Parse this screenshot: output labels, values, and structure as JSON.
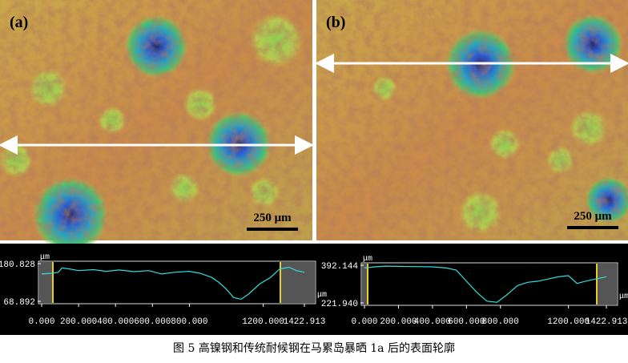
{
  "panels": [
    {
      "label": "(a)",
      "scale": "250 μm"
    },
    {
      "label": "(b)",
      "scale": "250 μm"
    }
  ],
  "chart_data": [
    {
      "type": "line",
      "ylabel": "μm",
      "xlabel": "μm",
      "color": "#33dddd",
      "ylim": [
        68.892,
        180.828
      ],
      "yticks": [
        68.892,
        180.828
      ],
      "xlim": [
        0,
        1422.913
      ],
      "xticks": [
        {
          "value": 0,
          "label": "0.000"
        },
        {
          "value": 200,
          "label": "200.000"
        },
        {
          "value": 400,
          "label": "400.000"
        },
        {
          "value": 600,
          "label": "600.000"
        },
        {
          "value": 800,
          "label": "800.000"
        },
        {
          "value": 1200,
          "label": "1200.000"
        },
        {
          "value": 1422.913,
          "label": "1422.913"
        }
      ],
      "x": [
        0,
        50,
        90,
        110,
        150,
        200,
        280,
        350,
        420,
        500,
        580,
        650,
        720,
        800,
        860,
        920,
        960,
        1000,
        1040,
        1080,
        1120,
        1180,
        1240,
        1290,
        1340,
        1380,
        1422.913
      ],
      "values": [
        150,
        152,
        155,
        168,
        165,
        160,
        163,
        158,
        162,
        157,
        160,
        150,
        155,
        158,
        152,
        140,
        125,
        105,
        80,
        75,
        90,
        120,
        140,
        165,
        170,
        160,
        155
      ]
    },
    {
      "type": "line",
      "ylabel": "μm",
      "xlabel": "μm",
      "color": "#33dddd",
      "ylim": [
        {
          "value": 221.94,
          "label": "221.940"
        },
        392.144
      ],
      "yticks": [
        {
          "value": 221.94,
          "label": "221.940"
        },
        392.144
      ],
      "xlim": [
        0,
        1422.913
      ],
      "xticks": [
        {
          "value": 0,
          "label": "0.000"
        },
        {
          "value": 200,
          "label": "200.000"
        },
        {
          "value": 400,
          "label": "400.000"
        },
        {
          "value": 600,
          "label": "600.000"
        },
        {
          "value": 800,
          "label": "800.000"
        },
        {
          "value": 1200,
          "label": "1200.000"
        },
        {
          "value": 1422.913,
          "label": "1422.913"
        }
      ],
      "x": [
        0,
        60,
        120,
        200,
        300,
        400,
        480,
        540,
        600,
        660,
        720,
        780,
        840,
        900,
        960,
        1020,
        1080,
        1140,
        1200,
        1250,
        1300,
        1360,
        1422.913
      ],
      "values": [
        380,
        385,
        388,
        387,
        386,
        385,
        380,
        370,
        320,
        270,
        230,
        225,
        260,
        300,
        315,
        320,
        330,
        340,
        345,
        310,
        320,
        330,
        340
      ]
    }
  ],
  "caption": "图 5  高镍钢和传统耐候钢在马累岛暴晒 1a 后的表面轮廓"
}
